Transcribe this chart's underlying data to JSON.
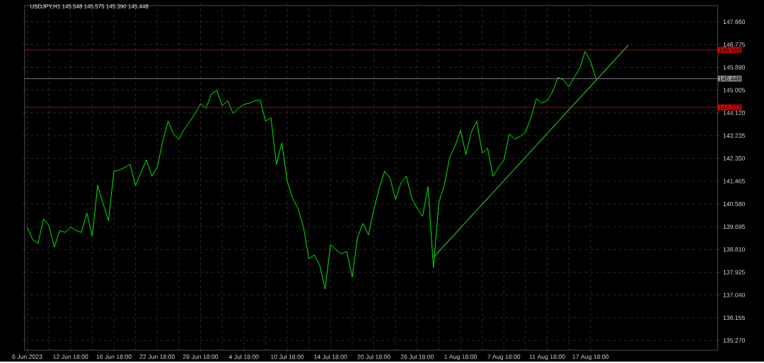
{
  "chart_data": {
    "type": "line",
    "title": "USDJPY,H1  145.548 145.575 145.390 145.448",
    "categories": [
      "6 Jun 2023",
      null,
      null,
      null,
      null,
      null,
      null,
      null,
      "12 Jun 18:00",
      null,
      null,
      null,
      null,
      null,
      null,
      null,
      "16 Jun 18:00",
      null,
      null,
      null,
      null,
      null,
      null,
      null,
      "22 Jun 18:00",
      null,
      null,
      null,
      null,
      null,
      null,
      null,
      "28 Jun 18:00",
      null,
      null,
      null,
      null,
      null,
      null,
      null,
      "4 Jul 18:00",
      null,
      null,
      null,
      null,
      null,
      null,
      null,
      "10 Jul 18:00",
      null,
      null,
      null,
      null,
      null,
      null,
      null,
      "14 Jul 18:00",
      null,
      null,
      null,
      null,
      null,
      null,
      null,
      "20 Jul 18:00",
      null,
      null,
      null,
      null,
      null,
      null,
      null,
      "26 Jul 18:00",
      null,
      null,
      null,
      null,
      null,
      null,
      null,
      "1 Aug 18:00",
      null,
      null,
      null,
      null,
      null,
      null,
      null,
      "7 Aug 18:00",
      null,
      null,
      null,
      null,
      null,
      null,
      null,
      "11 Aug 18:00",
      null,
      null,
      null,
      null,
      null,
      null,
      null,
      "17 Aug 18:00",
      null,
      null,
      null,
      null,
      null,
      null,
      null,
      null,
      null,
      null,
      null,
      null,
      null,
      null,
      null,
      null,
      null,
      null,
      null,
      null,
      null,
      null,
      null
    ],
    "ylim": [
      134.89,
      148.29
    ],
    "yticks": [
      {
        "value": 135.27,
        "label": "135.270"
      },
      {
        "value": 136.155,
        "label": "136.155"
      },
      {
        "value": 137.04,
        "label": "137.040"
      },
      {
        "value": 137.925,
        "label": "137.925"
      },
      {
        "value": 138.81,
        "label": "138.810"
      },
      {
        "value": 139.695,
        "label": "139.695"
      },
      {
        "value": 140.58,
        "label": "140.580"
      },
      {
        "value": 141.465,
        "label": "141.465"
      },
      {
        "value": 142.35,
        "label": "142.350"
      },
      {
        "value": 143.235,
        "label": "143.235"
      },
      {
        "value": 144.12,
        "label": "144.120"
      },
      {
        "value": 145.005,
        "label": "145.005"
      },
      {
        "value": 145.89,
        "label": "145.890"
      },
      {
        "value": 146.775,
        "label": "146.775"
      },
      {
        "value": 147.66,
        "label": "147.660"
      }
    ],
    "grid": true,
    "series": [
      {
        "color": "#00ff00",
        "values": [
          139.68,
          139.19,
          139.05,
          140.0,
          139.74,
          138.9,
          139.55,
          139.47,
          139.68,
          139.55,
          139.47,
          140.23,
          139.33,
          141.3,
          140.6,
          139.93,
          141.85,
          141.9,
          142.0,
          142.12,
          141.3,
          141.8,
          142.29,
          141.66,
          142.01,
          143.0,
          143.8,
          143.3,
          143.1,
          143.49,
          143.77,
          144.1,
          144.48,
          144.3,
          144.86,
          145.0,
          144.4,
          144.6,
          144.1,
          144.3,
          144.45,
          144.5,
          144.59,
          144.62,
          143.8,
          143.93,
          142.12,
          142.95,
          141.47,
          140.8,
          140.4,
          139.68,
          138.45,
          138.6,
          138.2,
          137.27,
          139.0,
          138.8,
          138.64,
          138.73,
          137.74,
          139.3,
          139.82,
          139.38,
          140.37,
          141.2,
          141.85,
          141.58,
          140.75,
          141.4,
          141.66,
          140.8,
          140.4,
          140.1,
          141.25,
          138.1,
          140.64,
          141.3,
          142.4,
          142.84,
          143.44,
          142.5,
          143.38,
          143.8,
          142.56,
          142.75,
          141.66,
          142.0,
          142.29,
          143.3,
          143.1,
          143.2,
          143.38,
          143.93,
          144.67,
          144.5,
          144.6,
          144.95,
          145.5,
          145.4,
          145.14,
          145.5,
          145.85,
          146.51,
          146.13,
          145.45,
          null,
          null,
          null,
          null,
          null,
          null,
          null,
          null,
          null,
          null,
          null,
          null,
          null,
          null,
          null,
          null,
          null,
          null,
          null,
          null,
          null,
          null
        ]
      },
      {
        "type": "line",
        "color": "#32cd32",
        "values": [
          null,
          null,
          null,
          null,
          null,
          null,
          null,
          null,
          null,
          null,
          null,
          null,
          null,
          null,
          null,
          null,
          null,
          null,
          null,
          null,
          null,
          null,
          null,
          null,
          null,
          null,
          null,
          null,
          null,
          null,
          null,
          null,
          null,
          null,
          null,
          null,
          null,
          null,
          null,
          null,
          null,
          null,
          null,
          null,
          null,
          null,
          null,
          null,
          null,
          null,
          null,
          null,
          null,
          null,
          null,
          null,
          null,
          null,
          null,
          null,
          null,
          null,
          null,
          null,
          null,
          null,
          null,
          null,
          null,
          null,
          null,
          null,
          null,
          null,
          null,
          138.5,
          138.73,
          138.96,
          139.19,
          139.42,
          139.65,
          139.88,
          140.11,
          140.34,
          140.57,
          140.79,
          141.02,
          141.25,
          141.48,
          141.71,
          141.94,
          142.17,
          142.4,
          142.63,
          142.86,
          143.09,
          143.32,
          143.55,
          143.78,
          144.01,
          144.24,
          144.47,
          144.69,
          144.92,
          145.15,
          145.38,
          145.61,
          145.84,
          146.07,
          146.3,
          146.53,
          146.76,
          null,
          null,
          null,
          null,
          null,
          null,
          null,
          null,
          null,
          null,
          null,
          null,
          null,
          null,
          null,
          null
        ]
      }
    ],
    "ref_lines": [
      {
        "axis": "y",
        "value": 146.569,
        "label": "146.569",
        "color": "#e00000"
      },
      {
        "axis": "y",
        "value": 144.333,
        "label": "144.333",
        "color": "#e00000"
      },
      {
        "axis": "y",
        "value": 145.448,
        "label": "145.448",
        "color": "#909090"
      }
    ]
  }
}
